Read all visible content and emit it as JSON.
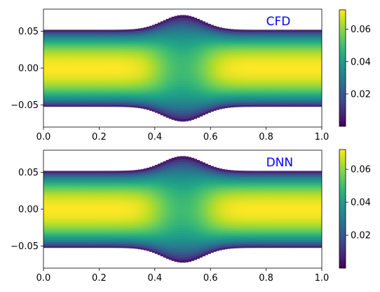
{
  "chart_data": [
    {
      "type": "heatmap",
      "annotation": "CFD",
      "annotation_color": "#0000ff",
      "xlim": [
        0,
        1
      ],
      "ylim": [
        -0.08,
        0.08
      ],
      "xticks": [
        "0.0",
        "0.2",
        "0.4",
        "0.6",
        "0.8",
        "1.0"
      ],
      "yticks": [
        "0.05",
        "0.00",
        "−0.05"
      ],
      "colormap": "viridis",
      "colorbar": {
        "min": 0.0,
        "max": 0.072,
        "ticks": [
          "0.02",
          "0.04",
          "0.06"
        ]
      },
      "field": {
        "description_values": "velocity magnitude, max at centerline, bulge at x=0.5",
        "wall_half_width_ends": 0.052,
        "wall_half_width_center": 0.072,
        "bulge_center_x": 0.5
      }
    },
    {
      "type": "heatmap",
      "annotation": "DNN",
      "annotation_color": "#0000ff",
      "xlim": [
        0,
        1
      ],
      "ylim": [
        -0.08,
        0.08
      ],
      "xticks": [
        "0.0",
        "0.2",
        "0.4",
        "0.6",
        "0.8",
        "1.0"
      ],
      "yticks": [
        "0.05",
        "0.00",
        "−0.05"
      ],
      "colormap": "viridis",
      "colorbar": {
        "min": 0.0,
        "max": 0.072,
        "ticks": [
          "0.02",
          "0.04",
          "0.06"
        ]
      },
      "field": {
        "description_values": "velocity magnitude, max at centerline, bulge at x=0.5",
        "wall_half_width_ends": 0.052,
        "wall_half_width_center": 0.072,
        "bulge_center_x": 0.5
      }
    }
  ]
}
